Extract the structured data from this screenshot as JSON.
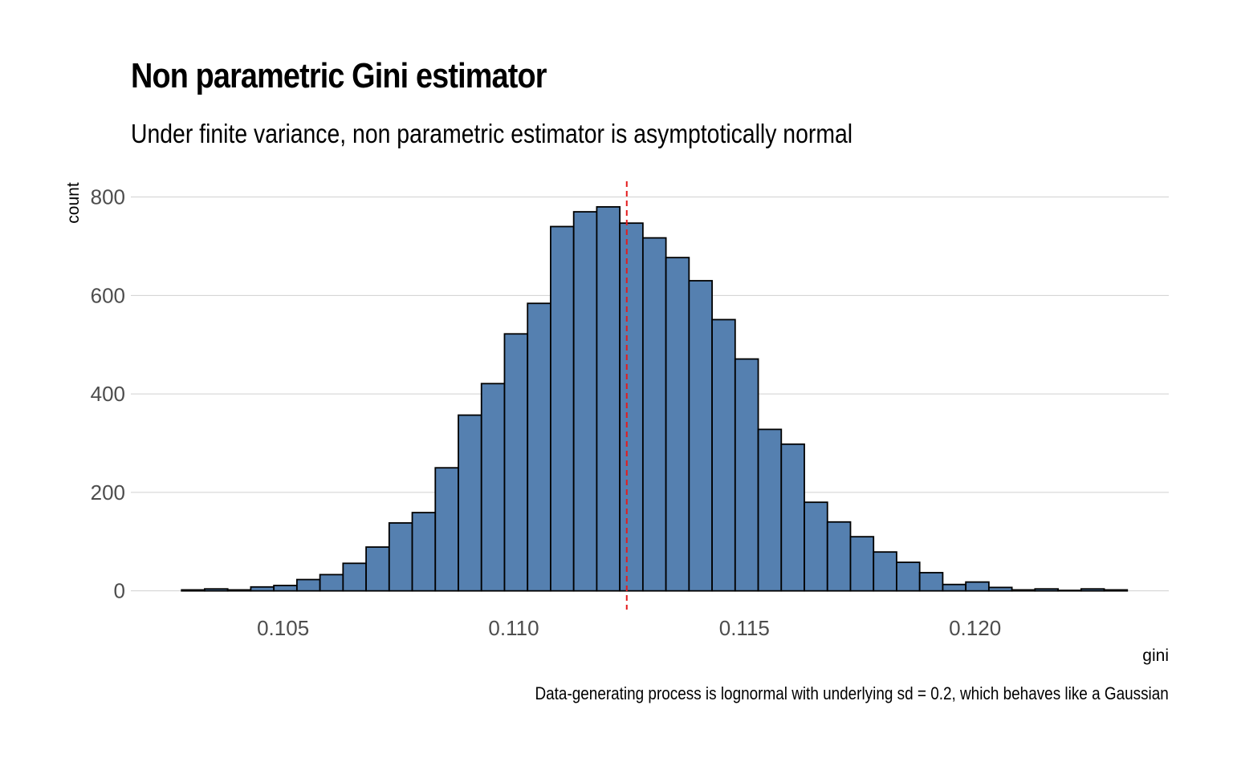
{
  "chart_data": {
    "type": "bar",
    "title": "Non parametric Gini estimator",
    "subtitle": "Under finite variance, non parametric estimator is asymptotically normal",
    "caption": "Data-generating process is lognormal with underlying sd = 0.2, which behaves like a Gaussian",
    "xlabel": "gini",
    "ylabel": "count",
    "xlim": [
      0.1017,
      0.1242
    ],
    "ylim": [
      -38,
      832
    ],
    "x_ticks": [
      0.105,
      0.11,
      0.115,
      0.12
    ],
    "x_tick_labels": [
      "0.105",
      "0.110",
      "0.115",
      "0.120"
    ],
    "y_ticks": [
      0,
      200,
      400,
      600,
      800
    ],
    "y_tick_labels": [
      "0",
      "200",
      "400",
      "600",
      "800"
    ],
    "bin_width": 0.0005,
    "bin_start": 0.1028,
    "counts": [
      2,
      4,
      2,
      8,
      11,
      23,
      33,
      56,
      89,
      138,
      159,
      250,
      357,
      421,
      522,
      584,
      740,
      770,
      780,
      747,
      717,
      677,
      630,
      551,
      471,
      328,
      298,
      180,
      140,
      110,
      79,
      58,
      37,
      13,
      18,
      7,
      2,
      4,
      1,
      4,
      2
    ],
    "mean_line": 0.11245,
    "grid": "horizontal",
    "legend": "none",
    "colors": {
      "bar_fill": "#5580b0",
      "bar_stroke": "#000000",
      "mean_line": "#e41a1c",
      "grid": "#d0d0d0"
    }
  }
}
